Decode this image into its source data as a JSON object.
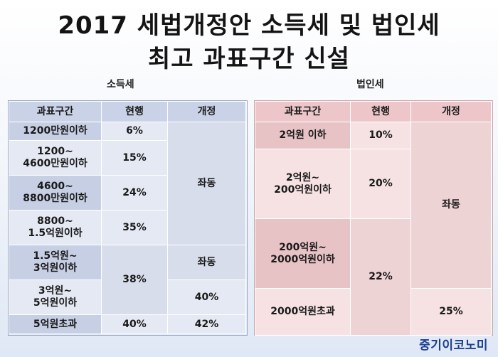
{
  "title_line1": "2017 세법개정안 소득세 및 법인세",
  "title_line2": "최고 과표구간 신설",
  "income_tax": {
    "label": "소득세",
    "headers": [
      "과표구간",
      "현행",
      "개정"
    ],
    "rows": [
      {
        "bracket": "1200만원이하",
        "current": "6%"
      },
      {
        "bracket": "1200~\n4600만원이하",
        "current": "15%"
      },
      {
        "bracket": "4600~\n8800만원이하",
        "current": "24%"
      },
      {
        "bracket": "8800~\n1.5억원이하",
        "current": "35%"
      },
      {
        "bracket": "1.5억원~\n3억원이하"
      },
      {
        "bracket": "3억원~\n5억원이하"
      },
      {
        "bracket": "5억원초과",
        "current": "40%",
        "revised": "42%"
      }
    ],
    "merged_current": "38%",
    "revised_same_1": "좌동",
    "revised_same_2": "좌동",
    "revised_40": "40%"
  },
  "corporate_tax": {
    "label": "법인세",
    "headers": [
      "과표구간",
      "현행",
      "개정"
    ],
    "rows": [
      {
        "bracket": "2억원 이하",
        "current": "10%"
      },
      {
        "bracket": "2억원~\n200억원이하",
        "current": "20%"
      },
      {
        "bracket": "200억원~\n2000억원이하"
      },
      {
        "bracket": "2000억원초과",
        "revised": "25%"
      }
    ],
    "merged_current": "22%",
    "revised_same": "좌동"
  },
  "brand": "중기이코노미"
}
